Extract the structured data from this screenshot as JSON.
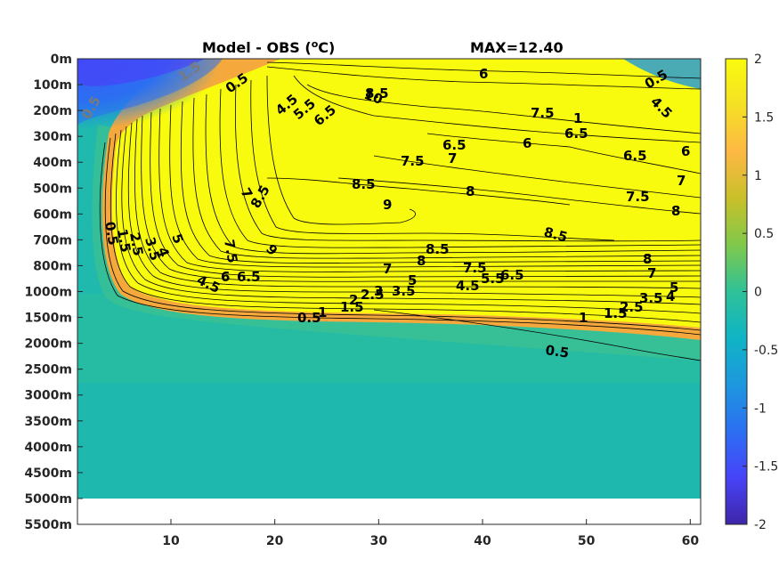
{
  "chart_data": {
    "type": "heatmap",
    "title": "Model - OBS (°C)",
    "title_main": "Model - OBS (",
    "title_sup": "o",
    "title_unit": "C)",
    "max_label": "MAX=12.40",
    "x_ticks": [
      10,
      20,
      30,
      40,
      50,
      60
    ],
    "xlim": [
      1,
      61
    ],
    "y_tick_labels": [
      "0m",
      "100m",
      "200m",
      "300m",
      "400m",
      "500m",
      "600m",
      "700m",
      "800m",
      "1000m",
      "1500m",
      "2000m",
      "2500m",
      "3000m",
      "3500m",
      "4000m",
      "4500m",
      "5000m",
      "5500m"
    ],
    "data_bottom_depth": "5000m",
    "colorbar": {
      "ticks": [
        2,
        1.5,
        1,
        0.5,
        0,
        -0.5,
        -1,
        -1.5,
        -2
      ],
      "tick_labels": [
        "2",
        "1.5",
        "1",
        "0.5",
        "0",
        "-0.5",
        "-1",
        "-1.5",
        "-2"
      ],
      "range": [
        -2,
        2
      ],
      "colormap": "parula",
      "colors": [
        "#3e26a8",
        "#4743f8",
        "#2c6ff2",
        "#1e97de",
        "#0fb4c5",
        "#2fc197",
        "#80c94b",
        "#c9c029",
        "#fdb844",
        "#f5e025",
        "#f9fb0e"
      ]
    },
    "contour_labels": [
      "0.5",
      "1",
      "1.5",
      "2",
      "2.5",
      "3",
      "3.5",
      "4",
      "4.5",
      "5",
      "5.5",
      "6",
      "6.5",
      "7",
      "7.5",
      "8",
      "8.5",
      "9",
      "10"
    ]
  }
}
